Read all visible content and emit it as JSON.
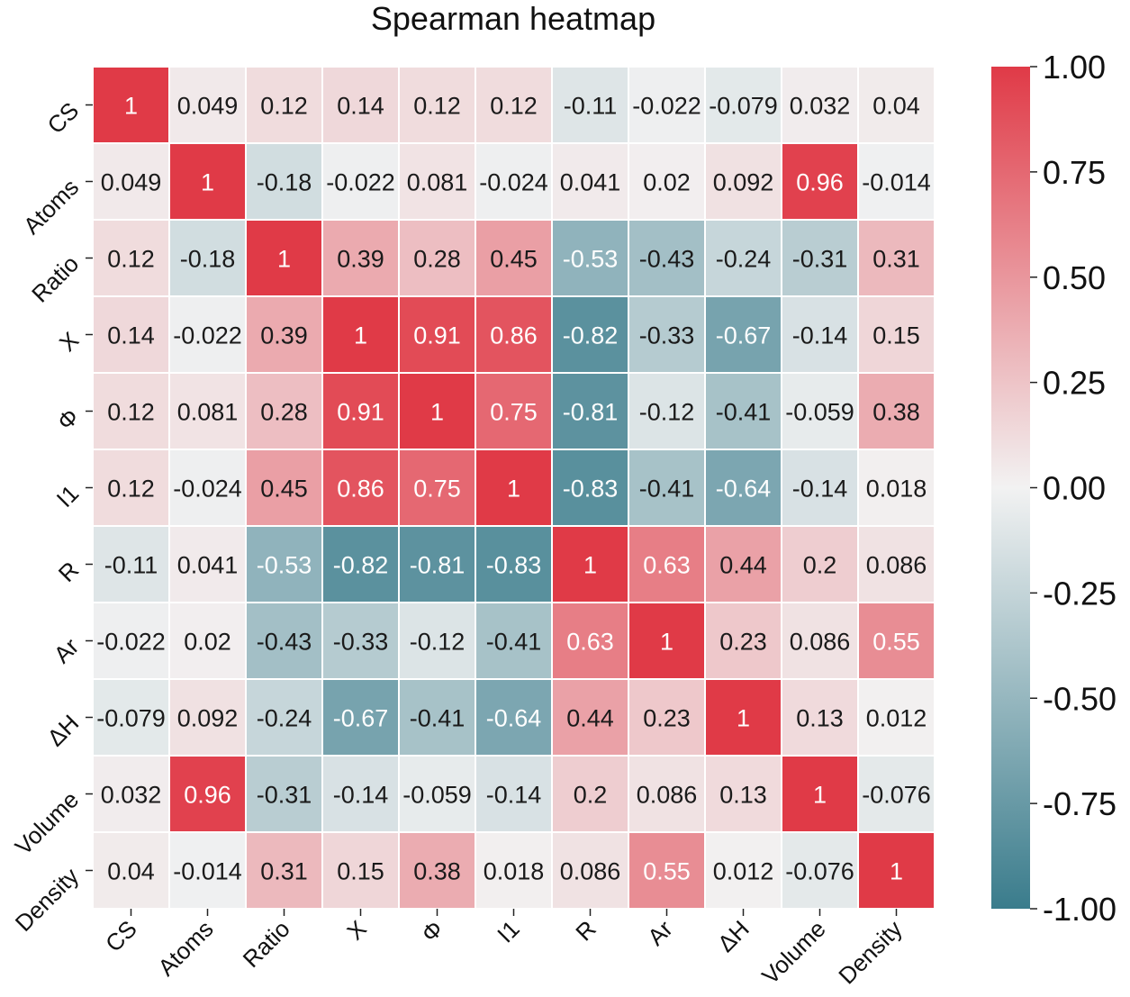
{
  "chart_data": {
    "type": "heatmap",
    "title": "Spearman heatmap",
    "labels": [
      "CS",
      "Atoms",
      "Ratio",
      "X",
      "Φ",
      "I1",
      "R",
      "Ar",
      "ΔH",
      "Volume",
      "Density"
    ],
    "matrix": [
      [
        1,
        0.049,
        0.12,
        0.14,
        0.12,
        0.12,
        -0.11,
        -0.022,
        -0.079,
        0.032,
        0.04
      ],
      [
        0.049,
        1,
        -0.18,
        -0.022,
        0.081,
        -0.024,
        0.041,
        0.02,
        0.092,
        0.96,
        -0.014
      ],
      [
        0.12,
        -0.18,
        1,
        0.39,
        0.28,
        0.45,
        -0.53,
        -0.43,
        -0.24,
        -0.31,
        0.31
      ],
      [
        0.14,
        -0.022,
        0.39,
        1,
        0.91,
        0.86,
        -0.82,
        -0.33,
        -0.67,
        -0.14,
        0.15
      ],
      [
        0.12,
        0.081,
        0.28,
        0.91,
        1,
        0.75,
        -0.81,
        -0.12,
        -0.41,
        -0.059,
        0.38
      ],
      [
        0.12,
        -0.024,
        0.45,
        0.86,
        0.75,
        1,
        -0.83,
        -0.41,
        -0.64,
        -0.14,
        0.018
      ],
      [
        -0.11,
        0.041,
        -0.53,
        -0.82,
        -0.81,
        -0.83,
        1,
        0.63,
        0.44,
        0.2,
        0.086
      ],
      [
        -0.022,
        0.02,
        -0.43,
        -0.33,
        -0.12,
        -0.41,
        0.63,
        1,
        0.23,
        0.086,
        0.55
      ],
      [
        -0.079,
        0.092,
        -0.24,
        -0.67,
        -0.41,
        -0.64,
        0.44,
        0.23,
        1,
        0.13,
        0.012
      ],
      [
        0.032,
        0.96,
        -0.31,
        -0.14,
        -0.059,
        -0.14,
        0.2,
        0.086,
        0.13,
        1,
        -0.076
      ],
      [
        0.04,
        -0.014,
        0.31,
        0.15,
        0.38,
        0.018,
        0.086,
        0.55,
        0.012,
        -0.076,
        1
      ]
    ],
    "vmin": -1,
    "vmax": 1,
    "colorbar_ticks": [
      "1.00",
      "0.75",
      "0.50",
      "0.25",
      "0.00",
      "-0.25",
      "-0.50",
      "-0.75",
      "-1.00"
    ],
    "colors": {
      "negative": "#3a7c8c",
      "neutral": "#f2f2f2",
      "positive": "#e03a47"
    },
    "annotations": true,
    "legend_position": "right"
  }
}
